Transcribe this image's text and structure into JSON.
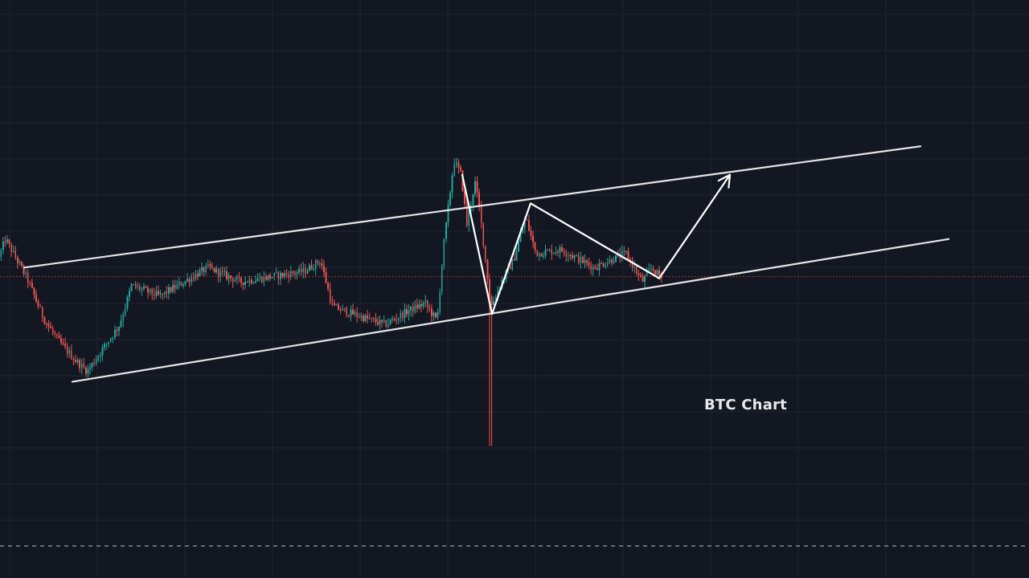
{
  "chart_data": {
    "type": "candlestick",
    "title": "BTC Chart",
    "grid": true,
    "colors": {
      "background": "#131722",
      "up": "#26a69a",
      "down": "#ef5350",
      "annotation": "#e6e6e6",
      "current_price_line": "#c0392b"
    },
    "price_scale": {
      "ymin": 0,
      "ymax": 100
    },
    "candle_count": 320,
    "price_path": [
      [
        0,
        61
      ],
      [
        8,
        66
      ],
      [
        35,
        55
      ],
      [
        55,
        44
      ],
      [
        72,
        38
      ],
      [
        95,
        32
      ],
      [
        110,
        29
      ],
      [
        150,
        42
      ],
      [
        165,
        53
      ],
      [
        200,
        50
      ],
      [
        260,
        58
      ],
      [
        300,
        54
      ],
      [
        380,
        57
      ],
      [
        400,
        60
      ],
      [
        415,
        47
      ],
      [
        480,
        42
      ],
      [
        510,
        46
      ],
      [
        530,
        48
      ],
      [
        545,
        43
      ],
      [
        553,
        64
      ],
      [
        566,
        88
      ],
      [
        575,
        84
      ],
      [
        582,
        70
      ],
      [
        592,
        82
      ],
      [
        598,
        74
      ],
      [
        612,
        47
      ],
      [
        625,
        54
      ],
      [
        640,
        60
      ],
      [
        655,
        72
      ],
      [
        668,
        62
      ],
      [
        700,
        63
      ],
      [
        740,
        58
      ],
      [
        760,
        60
      ],
      [
        780,
        62
      ],
      [
        800,
        54
      ],
      [
        812,
        58
      ],
      [
        824,
        55
      ]
    ],
    "current_price": 55.5,
    "channel": {
      "upper": {
        "start": [
          30,
          58
        ],
        "end": [
          1145,
          92
        ]
      },
      "lower": {
        "start": [
          90,
          26
        ],
        "end": [
          1180,
          66
        ]
      }
    },
    "pattern_path": [
      [
        575,
        84
      ],
      [
        612,
        45
      ],
      [
        660,
        76
      ],
      [
        820,
        55
      ],
      [
        908,
        84
      ]
    ],
    "arrow_end": [
      908,
      84
    ]
  }
}
